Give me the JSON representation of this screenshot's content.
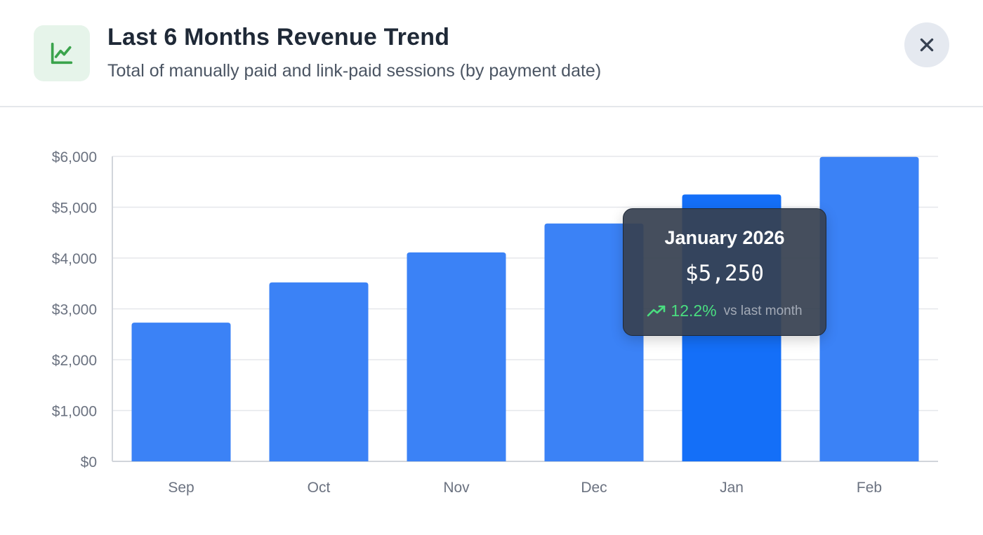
{
  "header": {
    "title": "Last 6 Months Revenue Trend",
    "subtitle": "Total of manually paid and link-paid sessions (by payment date)",
    "icon": "line-chart-icon",
    "close_icon": "close-icon"
  },
  "colors": {
    "bar": "#3b82f6",
    "bar_active": "#146ff8",
    "grid": "#e5e7eb",
    "axis_text": "#6b7280",
    "positive": "#4ade80",
    "icon_green": "#3aa34c"
  },
  "tooltip": {
    "title": "January 2026",
    "value": "$5,250",
    "change": "12.2%",
    "compare_label": "vs last month",
    "change_icon": "trending-up-icon"
  },
  "chart_data": {
    "type": "bar",
    "categories": [
      "Sep",
      "Oct",
      "Nov",
      "Dec",
      "Jan",
      "Feb"
    ],
    "values": [
      2730,
      3520,
      4110,
      4680,
      5250,
      5990
    ],
    "ylim": [
      0,
      6000
    ],
    "yticks": [
      0,
      1000,
      2000,
      3000,
      4000,
      5000,
      6000
    ],
    "ytick_labels": [
      "$0",
      "$1,000",
      "$2,000",
      "$3,000",
      "$4,000",
      "$5,000",
      "$6,000"
    ],
    "highlighted": "Jan",
    "grid": true,
    "legend": "none"
  }
}
